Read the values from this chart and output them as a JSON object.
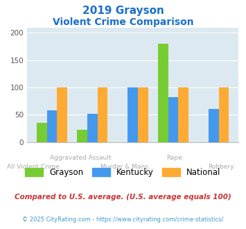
{
  "title_line1": "2019 Grayson",
  "title_line2": "Violent Crime Comparison",
  "categories": [
    "All Violent Crime",
    "Aggravated Assault",
    "Murder & Mans...",
    "Rape",
    "Robbery"
  ],
  "grayson": [
    35,
    22,
    0,
    180,
    0
  ],
  "kentucky": [
    58,
    52,
    100,
    82,
    61
  ],
  "national": [
    100,
    100,
    100,
    100,
    100
  ],
  "color_grayson": "#77cc33",
  "color_kentucky": "#4499ee",
  "color_national": "#ffaa33",
  "ylim": [
    0,
    210
  ],
  "yticks": [
    0,
    50,
    100,
    150,
    200
  ],
  "bg_color": "#dce9f0",
  "footnote": "Compared to U.S. average. (U.S. average equals 100)",
  "copyright": "© 2025 CityRating.com - https://www.cityrating.com/crime-statistics/",
  "title_color": "#1a6fcc",
  "footnote_color": "#cc3333",
  "copyright_color": "#4499cc",
  "xlabel_color": "#aaaaaa"
}
